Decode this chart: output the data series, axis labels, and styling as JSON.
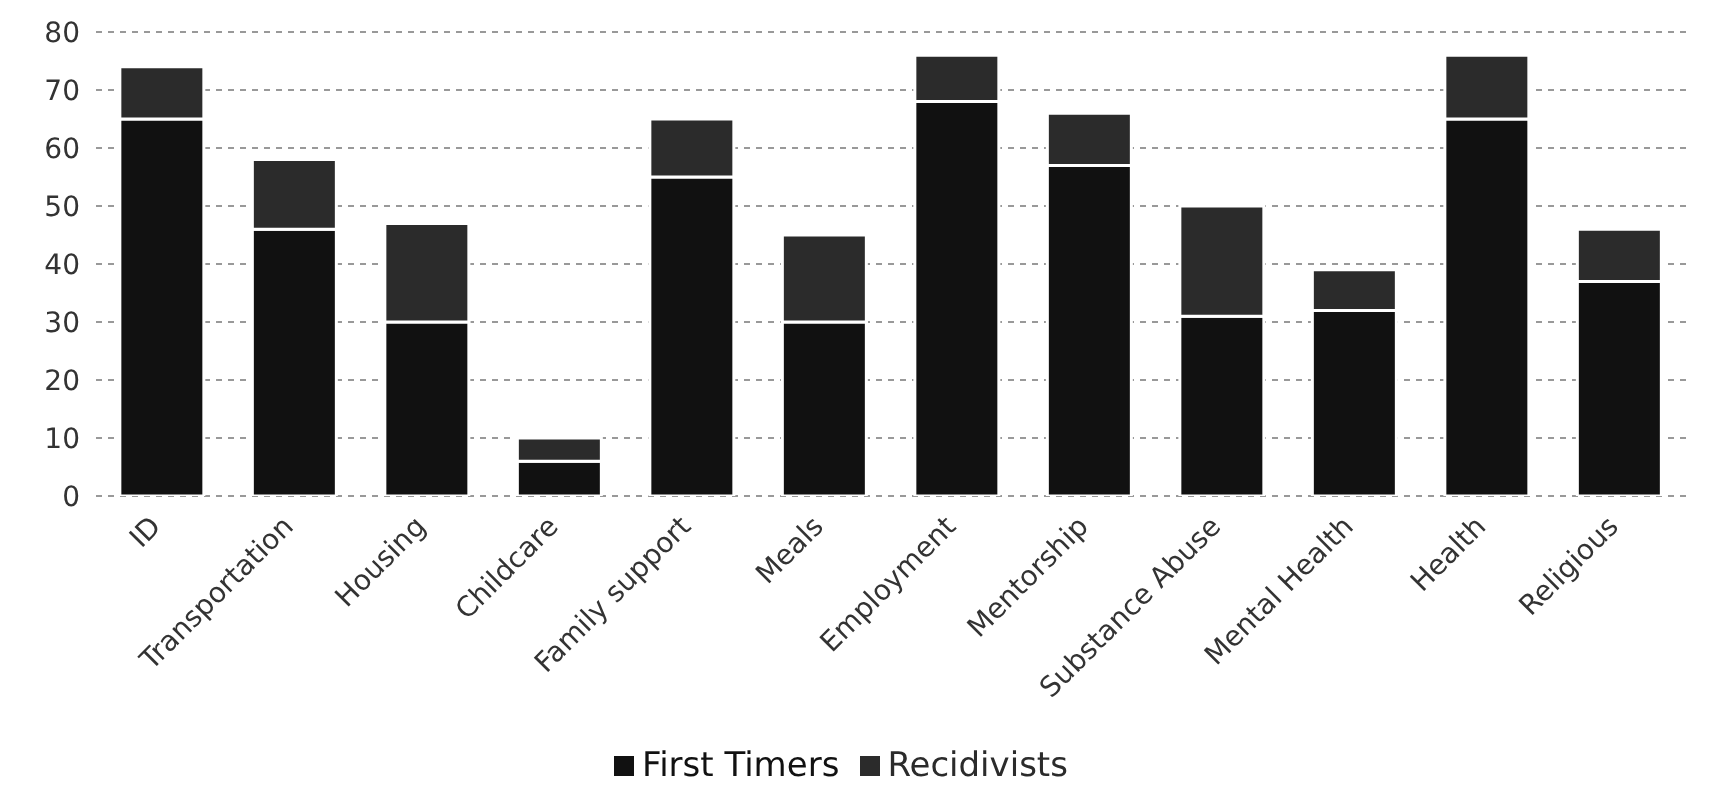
{
  "chart_data": {
    "type": "bar",
    "stacked": true,
    "categories": [
      "ID",
      "Transportation",
      "Housing",
      "Childcare",
      "Family support",
      "Meals",
      "Employment",
      "Mentorship",
      "Substance Abuse",
      "Mental Health",
      "Health",
      "Religious"
    ],
    "series": [
      {
        "name": "First Timers",
        "color": "#111111",
        "values": [
          65,
          46,
          30,
          6,
          55,
          30,
          68,
          57,
          31,
          32,
          65,
          37
        ]
      },
      {
        "name": "Recidivists",
        "color": "#2b2b2b",
        "values": [
          9,
          12,
          17,
          4,
          10,
          15,
          8,
          9,
          19,
          7,
          11,
          9
        ]
      }
    ],
    "ylim": [
      0,
      80
    ],
    "yticks": [
      0,
      10,
      20,
      30,
      40,
      50,
      60,
      70,
      80
    ],
    "grid": "y",
    "legend": "bottom"
  }
}
